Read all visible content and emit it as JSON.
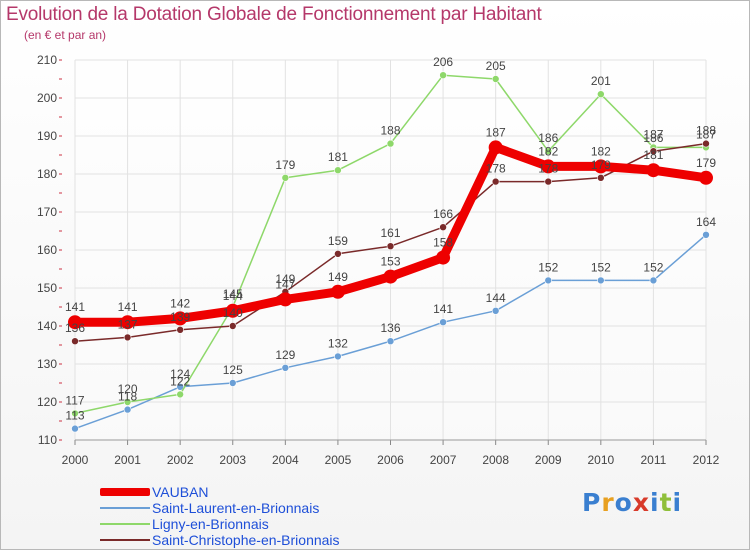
{
  "title": "Evolution de la Dotation Globale de Fonctionnement par Habitant",
  "subtitle": "(en € et par an)",
  "logo": {
    "text": "Proxiti",
    "letters": [
      {
        "ch": "P",
        "color": "#3a7fd0"
      },
      {
        "ch": "r",
        "color": "#e8a020"
      },
      {
        "ch": "o",
        "color": "#3a7fd0"
      },
      {
        "ch": "x",
        "color": "#d83a2a"
      },
      {
        "ch": "i",
        "color": "#3a7fd0"
      },
      {
        "ch": "t",
        "color": "#8fbf3a"
      },
      {
        "ch": "i",
        "color": "#3a7fd0"
      }
    ]
  },
  "chart_data": {
    "type": "line",
    "title": "Evolution de la Dotation Globale de Fonctionnement par Habitant",
    "subtitle": "(en € et par an)",
    "xlabel": "",
    "ylabel": "",
    "x": [
      "2000",
      "2001",
      "2002",
      "2003",
      "2004",
      "2005",
      "2006",
      "2007",
      "2008",
      "2009",
      "2010",
      "2011",
      "2012"
    ],
    "ylim": [
      110,
      210
    ],
    "yticks": [
      110,
      120,
      130,
      140,
      150,
      160,
      170,
      180,
      190,
      200,
      210
    ],
    "grid": true,
    "legend_position": "bottom-left",
    "series": [
      {
        "name": "VAUBAN",
        "color": "#ee0000",
        "emphasis": true,
        "values": [
          141,
          141,
          142,
          144,
          147,
          149,
          153,
          158,
          187,
          182,
          182,
          181,
          179
        ],
        "labels": [
          "141",
          "141",
          "142",
          "144",
          "147",
          "149",
          "153",
          "158",
          "187",
          "182",
          "182",
          "181",
          "179"
        ]
      },
      {
        "name": "Saint-Laurent-en-Brionnais",
        "color": "#6a9fd6",
        "values": [
          113,
          118,
          124,
          125,
          129,
          132,
          136,
          141,
          144,
          152,
          152,
          152,
          164
        ],
        "labels": [
          "113",
          "118",
          "124",
          "125",
          "129",
          "132",
          "136",
          "141",
          "144",
          "152",
          "152",
          "152",
          "164"
        ]
      },
      {
        "name": "Ligny-en-Brionnais",
        "color": "#8ed86a",
        "values": [
          117,
          120,
          122,
          145,
          179,
          181,
          188,
          206,
          205,
          186,
          201,
          187,
          187
        ],
        "labels": [
          "117",
          "120",
          "122",
          "145",
          "179",
          "181",
          "188",
          "206",
          "205",
          "186",
          "201",
          "187",
          "187"
        ]
      },
      {
        "name": "Saint-Christophe-en-Brionnais",
        "color": "#7a2a2a",
        "values": [
          136,
          137,
          139,
          140,
          149,
          159,
          161,
          166,
          178,
          178,
          179,
          186,
          188
        ],
        "labels": [
          "136",
          "137",
          "139",
          "140",
          "149",
          "159",
          "161",
          "166",
          "178",
          "178",
          "179",
          "186",
          "188"
        ]
      }
    ]
  }
}
